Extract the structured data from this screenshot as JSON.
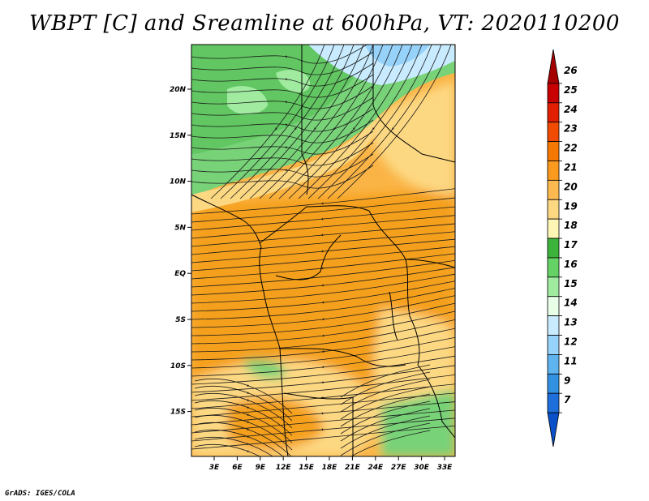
{
  "title": "WBPT [C] and Sreamline at 600hPa, VT: 2020110200",
  "footer": "GrADS: IGES/COLA",
  "map": {
    "lat_labels": [
      "20N",
      "15N",
      "10N",
      "5N",
      "EQ",
      "5S",
      "10S",
      "15S"
    ],
    "lon_labels": [
      "3E",
      "6E",
      "9E",
      "12E",
      "15E",
      "18E",
      "21E",
      "24E",
      "27E",
      "30E",
      "33E"
    ]
  },
  "colorbar": {
    "levels": [
      "26",
      "25",
      "24",
      "23",
      "22",
      "21",
      "20",
      "19",
      "18",
      "17",
      "16",
      "15",
      "14",
      "13",
      "12",
      "11",
      "9",
      "7"
    ],
    "colors": [
      "#a50000",
      "#c80000",
      "#e11e00",
      "#f04b00",
      "#f57800",
      "#fa9a1e",
      "#fcb950",
      "#fdd882",
      "#fff5b4",
      "#3cb43c",
      "#64d264",
      "#a0eba0",
      "#e6ffe6",
      "#c8ebff",
      "#96d2fa",
      "#5fb4f0",
      "#3291e1",
      "#1e6edc",
      "#0a50c8"
    ]
  },
  "fill_colors": {
    "orange_deep": "#f5a01e",
    "orange": "#fab446",
    "yellow": "#fdd882",
    "green_dark": "#50be50",
    "green": "#78d278",
    "green_light": "#a0eba0",
    "blue_light": "#c8ebff",
    "blue": "#96d2fa"
  }
}
